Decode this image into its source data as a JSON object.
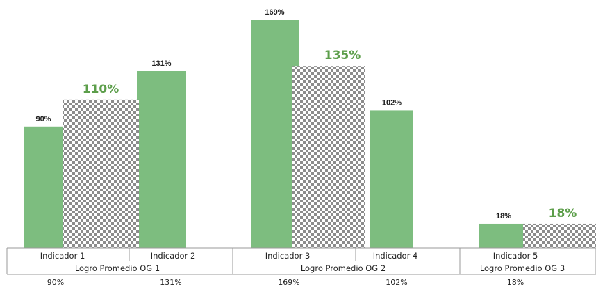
{
  "chart_data": {
    "type": "bar",
    "categories": [
      "Indicador 1",
      "Indicador 2",
      "Indicador 3",
      "Indicador 4",
      "Indicador 5"
    ],
    "values": [
      90,
      131,
      169,
      102,
      18
    ],
    "value_labels": [
      "90%",
      "131%",
      "169%",
      "102%",
      "18%"
    ],
    "groups": [
      {
        "label": "Logro Promedio OG 1",
        "indicators": [
          0,
          1
        ],
        "average": 110,
        "average_label": "110%"
      },
      {
        "label": "Logro Promedio OG 2",
        "indicators": [
          2,
          3
        ],
        "average": 135,
        "average_label": "135%"
      },
      {
        "label": "Logro Promedio OG 3",
        "indicators": [
          4
        ],
        "average": 18,
        "average_label": "18%"
      }
    ],
    "table_values": [
      "90%",
      "131%",
      "169%",
      "102%",
      "18%"
    ],
    "ylim": [
      0,
      180
    ],
    "grid": false,
    "colors": {
      "bar": "#7dbd7f",
      "average_pattern_light": "#ffffff",
      "average_pattern_dark": "#8c8c8c",
      "average_label": "#5c9e4a",
      "axis": "#9a9a9a"
    }
  }
}
